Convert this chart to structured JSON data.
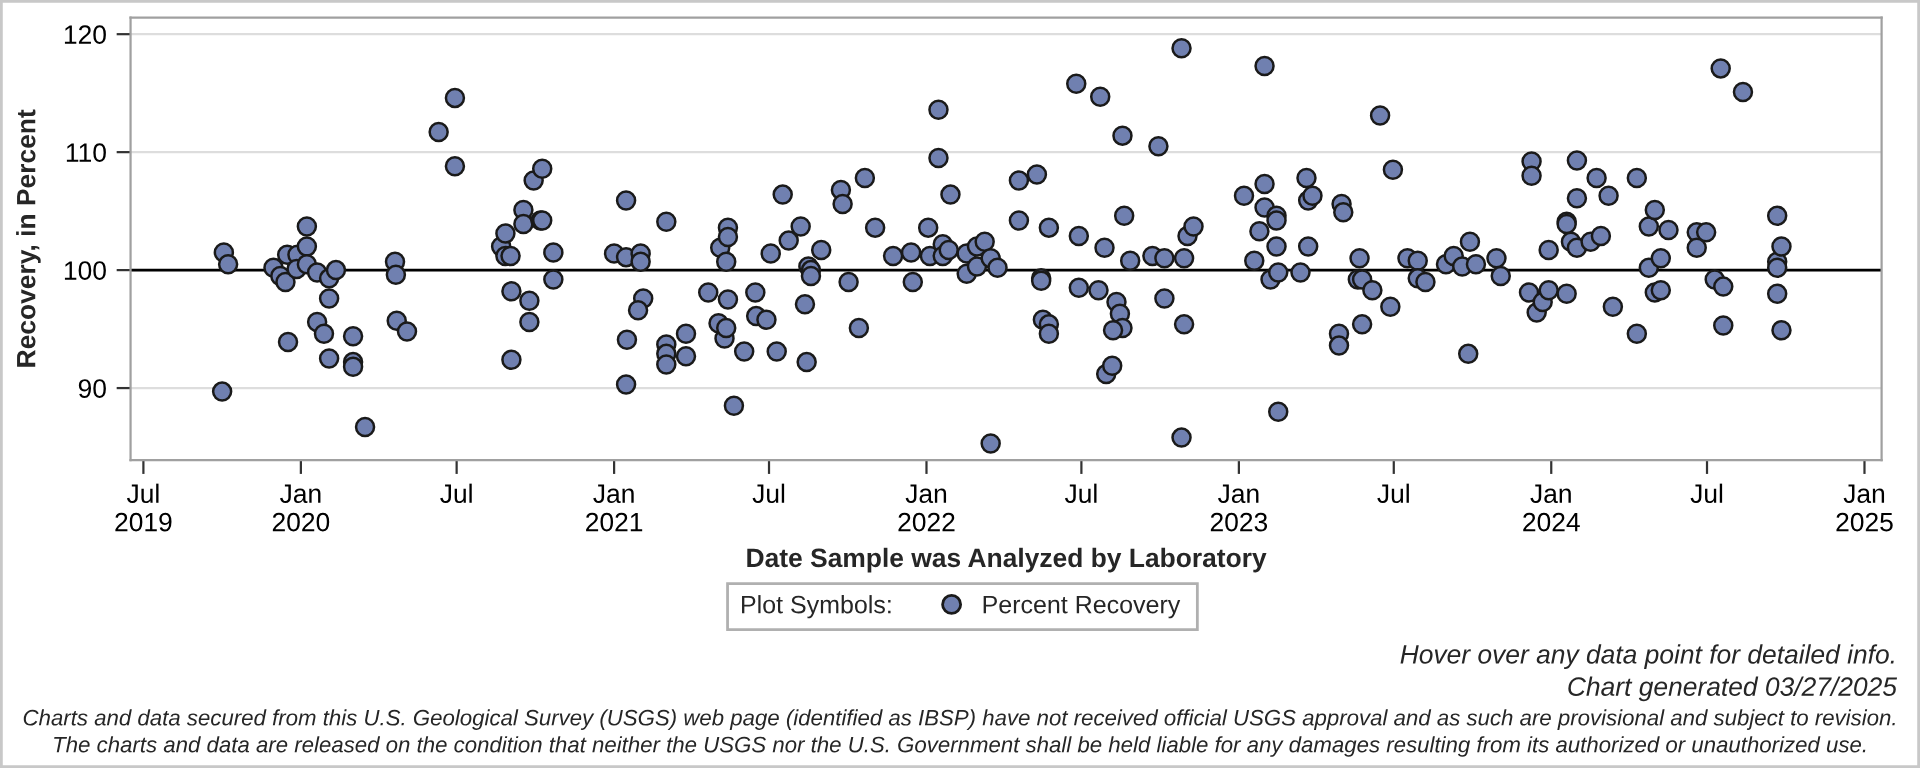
{
  "chart_data": {
    "type": "scatter",
    "xlabel": "Date Sample was Analyzed by Laboratory",
    "ylabel": "Recovery, in Percent",
    "legend_title": "Plot Symbols:",
    "legend": "bottom",
    "marker": "circle",
    "grid": "y",
    "xlim": [
      "2019-06-16",
      "2025-01-21"
    ],
    "xticks": [
      {
        "value": "2019-07-01",
        "label": "Jul\n2019"
      },
      {
        "value": "2020-01-01",
        "label": "Jan\n2020"
      },
      {
        "value": "2020-07-01",
        "label": "Jul"
      },
      {
        "value": "2021-01-01",
        "label": "Jan\n2021"
      },
      {
        "value": "2021-07-01",
        "label": "Jul"
      },
      {
        "value": "2022-01-01",
        "label": "Jan\n2022"
      },
      {
        "value": "2022-07-01",
        "label": "Jul"
      },
      {
        "value": "2023-01-01",
        "label": "Jan\n2023"
      },
      {
        "value": "2023-07-01",
        "label": "Jul"
      },
      {
        "value": "2024-01-01",
        "label": "Jan\n2024"
      },
      {
        "value": "2024-07-01",
        "label": "Jul"
      },
      {
        "value": "2025-01-01",
        "label": "Jan\n2025"
      }
    ],
    "ylim": [
      83.9,
      121.4
    ],
    "yticks": [
      90,
      100,
      110,
      120
    ],
    "ref_lines": [
      {
        "axis": "y",
        "value": 100,
        "color": "#000000"
      }
    ],
    "annotations": [
      "Hover over any data point for detailed info.",
      "Chart generated 03/27/2025",
      "Charts and data secured from this U.S. Geological Survey (USGS) web page (identified as IBSP) have not received official USGS approval and as such are provisional and subject to revision.",
      "The charts and data are released on the condition that neither the USGS nor the U.S. Government shall be held liable for any damages resulting from its authorized or unauthorized use."
    ],
    "series": [
      {
        "name": "Percent Recovery",
        "color": "#7080b0",
        "x": [
          "2019-10-03",
          "2019-10-08",
          "2019-10-01",
          "2019-11-30",
          "2019-12-08",
          "2019-12-14",
          "2019-12-16",
          "2019-12-17",
          "2019-12-28",
          "2019-12-27",
          "2020-01-08",
          "2020-01-08",
          "2020-01-08",
          "2020-01-20",
          "2020-01-20",
          "2020-01-28",
          "2020-02-03",
          "2020-02-03",
          "2020-02-03",
          "2020-02-11",
          "2020-03-02",
          "2020-03-02",
          "2020-03-02",
          "2020-03-16",
          "2020-04-20",
          "2020-04-21",
          "2020-04-22",
          "2020-05-04",
          "2020-06-10",
          "2020-06-29",
          "2020-06-29",
          "2020-08-22",
          "2020-08-27",
          "2020-08-27",
          "2020-09-02",
          "2020-09-03",
          "2020-09-03",
          "2020-09-17",
          "2020-09-17",
          "2020-09-24",
          "2020-09-24",
          "2020-09-29",
          "2020-10-07",
          "2020-10-09",
          "2020-10-09",
          "2020-10-22",
          "2020-10-22",
          "2021-01-01",
          "2021-01-15",
          "2021-01-15",
          "2021-01-16",
          "2021-01-15",
          "2021-02-01",
          "2021-02-01",
          "2021-02-04",
          "2021-01-29",
          "2021-03-03",
          "2021-03-03",
          "2021-03-03",
          "2021-03-03",
          "2021-03-26",
          "2021-03-26",
          "2021-04-21",
          "2021-05-03",
          "2021-05-05",
          "2021-05-10",
          "2021-05-12",
          "2021-05-14",
          "2021-05-14",
          "2021-05-12",
          "2021-05-14",
          "2021-05-21",
          "2021-06-02",
          "2021-06-15",
          "2021-06-16",
          "2021-06-28",
          "2021-07-03",
          "2021-07-10",
          "2021-07-17",
          "2021-07-24",
          "2021-08-07",
          "2021-08-12",
          "2021-08-14",
          "2021-08-16",
          "2021-08-19",
          "2021-08-19",
          "2021-08-31",
          "2021-09-23",
          "2021-09-25",
          "2021-10-02",
          "2021-10-14",
          "2021-10-21",
          "2021-11-02",
          "2021-11-23",
          "2021-12-14",
          "2021-12-16",
          "2022-01-03",
          "2022-01-05",
          "2022-01-15",
          "2022-01-15",
          "2022-01-20",
          "2022-01-20",
          "2022-01-27",
          "2022-01-29",
          "2022-02-17",
          "2022-02-17",
          "2022-03-01",
          "2022-03-01",
          "2022-03-10",
          "2022-03-17",
          "2022-03-25",
          "2022-03-17",
          "2022-04-19",
          "2022-04-19",
          "2022-05-10",
          "2022-05-15",
          "2022-05-15",
          "2022-05-17",
          "2022-05-24",
          "2022-05-24",
          "2022-05-24",
          "2022-06-25",
          "2022-06-28",
          "2022-06-28",
          "2022-07-21",
          "2022-07-23",
          "2022-07-28",
          "2022-07-30",
          "2022-08-06",
          "2022-08-11",
          "2022-08-15",
          "2022-08-18",
          "2022-08-18",
          "2022-08-07",
          "2022-08-20",
          "2022-08-27",
          "2022-09-22",
          "2022-09-29",
          "2022-10-06",
          "2022-10-06",
          "2022-10-26",
          "2022-10-26",
          "2022-10-29",
          "2022-10-29",
          "2022-11-02",
          "2022-11-09",
          "2023-01-07",
          "2023-01-19",
          "2023-01-25",
          "2023-01-31",
          "2023-01-31",
          "2023-01-31",
          "2023-02-07",
          "2023-02-14",
          "2023-02-14",
          "2023-02-14",
          "2023-02-16",
          "2023-02-16",
          "2023-03-14",
          "2023-03-21",
          "2023-03-23",
          "2023-03-28",
          "2023-03-23",
          "2023-04-28",
          "2023-04-28",
          "2023-05-01",
          "2023-05-03",
          "2023-05-22",
          "2023-05-20",
          "2023-05-25",
          "2023-05-25",
          "2023-06-06",
          "2023-06-15",
          "2023-06-27",
          "2023-06-30",
          "2023-07-17",
          "2023-07-29",
          "2023-07-29",
          "2023-08-07",
          "2023-08-31",
          "2023-09-09",
          "2023-09-19",
          "2023-09-28",
          "2023-10-05",
          "2023-09-26",
          "2023-10-29",
          "2023-11-03",
          "2023-12-06",
          "2023-12-09",
          "2023-12-09",
          "2023-12-15",
          "2023-12-22",
          "2023-12-29",
          "2023-12-29",
          "2024-01-19",
          "2024-01-19",
          "2024-01-19",
          "2024-01-24",
          "2024-01-31",
          "2024-01-31",
          "2024-01-31",
          "2024-02-16",
          "2024-02-23",
          "2024-02-28",
          "2024-03-08",
          "2024-03-13",
          "2024-04-10",
          "2024-04-10",
          "2024-04-24",
          "2024-04-24",
          "2024-05-01",
          "2024-05-01",
          "2024-05-08",
          "2024-05-08",
          "2024-05-17",
          "2024-06-19",
          "2024-06-19",
          "2024-06-30",
          "2024-07-10",
          "2024-07-17",
          "2024-07-20",
          "2024-07-20",
          "2024-08-12",
          "2024-09-21",
          "2024-09-21",
          "2024-09-21",
          "2024-09-21",
          "2024-09-26",
          "2024-09-26"
        ],
        "values": [
          101.5,
          100.5,
          89.7,
          100.2,
          99.5,
          99.0,
          101.3,
          93.9,
          101.3,
          100.1,
          103.7,
          102.0,
          100.5,
          99.8,
          95.6,
          94.6,
          99.3,
          97.6,
          92.5,
          100.0,
          94.4,
          92.2,
          91.8,
          86.7,
          100.7,
          99.6,
          95.7,
          94.8,
          111.7,
          114.6,
          108.8,
          102.0,
          103.1,
          101.2,
          101.2,
          98.2,
          92.4,
          105.1,
          103.9,
          97.4,
          95.6,
          107.6,
          104.2,
          108.6,
          104.2,
          101.5,
          99.2,
          101.4,
          105.9,
          101.1,
          94.1,
          90.3,
          101.4,
          100.7,
          97.6,
          96.6,
          104.1,
          93.7,
          92.9,
          92.0,
          94.6,
          92.7,
          98.1,
          95.5,
          101.9,
          94.2,
          95.1,
          103.6,
          102.8,
          100.7,
          97.5,
          88.5,
          93.1,
          98.1,
          96.1,
          95.8,
          101.4,
          93.1,
          106.4,
          102.5,
          103.7,
          97.1,
          92.2,
          100.3,
          100.0,
          99.5,
          101.7,
          106.8,
          105.6,
          99.0,
          95.1,
          107.8,
          103.6,
          101.2,
          101.5,
          99.0,
          103.6,
          101.2,
          113.6,
          109.5,
          102.2,
          101.2,
          101.7,
          106.4,
          101.4,
          99.7,
          102.0,
          100.3,
          102.4,
          101.0,
          100.2,
          85.3,
          107.6,
          104.2,
          108.1,
          99.3,
          99.1,
          95.8,
          95.4,
          94.6,
          103.6,
          115.8,
          102.9,
          98.5,
          98.3,
          114.7,
          101.9,
          91.2,
          91.9,
          97.3,
          96.3,
          111.4,
          95.1,
          94.9,
          104.6,
          100.8,
          101.2,
          110.5,
          101.0,
          97.6,
          118.8,
          85.8,
          101.0,
          95.4,
          102.9,
          103.7,
          106.3,
          100.8,
          103.3,
          117.3,
          107.3,
          105.3,
          99.2,
          104.6,
          104.2,
          102.0,
          99.8,
          88.0,
          99.8,
          107.8,
          105.9,
          106.3,
          102.0,
          94.6,
          93.6,
          105.6,
          104.9,
          101.0,
          99.2,
          99.2,
          95.4,
          98.3,
          113.1,
          96.9,
          108.5,
          101.0,
          100.8,
          99.3,
          99.0,
          100.5,
          101.2,
          100.3,
          102.4,
          100.5,
          92.9,
          101.0,
          99.5,
          98.1,
          109.2,
          108.0,
          96.4,
          97.3,
          101.7,
          98.3,
          98.0,
          104.1,
          103.9,
          102.4,
          101.9,
          106.1,
          109.3,
          102.4,
          107.8,
          102.9,
          106.3,
          96.9,
          107.8,
          94.6,
          103.7,
          100.2,
          105.1,
          98.1,
          98.3,
          101.0,
          103.4,
          103.2,
          101.9,
          103.2,
          99.2,
          117.1,
          98.6,
          95.3,
          115.1,
          104.6,
          100.7,
          100.2,
          98.0,
          102.0,
          94.9
        ]
      }
    ]
  }
}
